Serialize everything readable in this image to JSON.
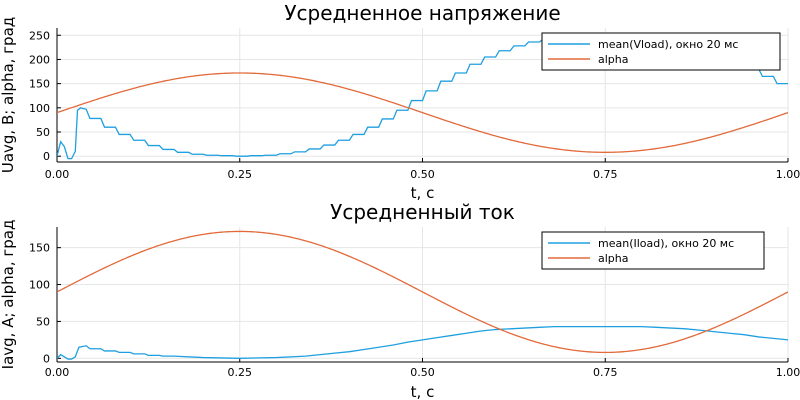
{
  "colors": {
    "series1": "#1f9fe0",
    "series2": "#e26a3b"
  },
  "chart_data": [
    {
      "type": "line",
      "title": "Усредненное напряжение",
      "xlabel": "t, c",
      "ylabel": "Uavg, В; alpha, град",
      "xlim": [
        0,
        1
      ],
      "ylim": [
        -12,
        265
      ],
      "xticks": [
        0,
        0.25,
        0.5,
        0.75,
        1
      ],
      "xtick_labels": [
        "0.00",
        "0.25",
        "0.50",
        "0.75",
        "1.00"
      ],
      "yticks": [
        0,
        50,
        100,
        150,
        200,
        250
      ],
      "ytick_labels": [
        "0",
        "50",
        "100",
        "150",
        "200",
        "250"
      ],
      "grid": true,
      "legend_position": "top-right",
      "series": [
        {
          "name": "mean(Vload), окно 20 мс",
          "x": [
            0,
            0.005,
            0.01,
            0.015,
            0.02,
            0.025,
            0.028,
            0.03,
            0.032,
            0.04,
            0.045,
            0.06,
            0.065,
            0.08,
            0.085,
            0.1,
            0.105,
            0.12,
            0.125,
            0.14,
            0.145,
            0.16,
            0.165,
            0.18,
            0.185,
            0.2,
            0.205,
            0.22,
            0.225,
            0.24,
            0.245,
            0.26,
            0.265,
            0.28,
            0.285,
            0.3,
            0.305,
            0.32,
            0.325,
            0.34,
            0.345,
            0.36,
            0.365,
            0.38,
            0.385,
            0.4,
            0.405,
            0.42,
            0.425,
            0.44,
            0.445,
            0.46,
            0.465,
            0.48,
            0.485,
            0.5,
            0.505,
            0.52,
            0.525,
            0.54,
            0.545,
            0.56,
            0.565,
            0.58,
            0.585,
            0.6,
            0.605,
            0.62,
            0.625,
            0.64,
            0.645,
            0.66,
            0.665,
            0.68,
            0.685,
            0.7,
            0.705,
            0.72,
            0.725,
            0.74,
            0.745,
            0.76,
            0.765,
            0.78,
            0.785,
            0.8,
            0.805,
            0.82,
            0.825,
            0.84,
            0.845,
            0.86,
            0.865,
            0.88,
            0.885,
            0.9,
            0.905,
            0.92,
            0.925,
            0.94,
            0.945,
            0.96,
            0.965,
            0.98,
            0.985,
            1.0
          ],
          "y": [
            0,
            30,
            20,
            -5,
            -5,
            10,
            95,
            97,
            100,
            97,
            78,
            78,
            60,
            60,
            45,
            45,
            33,
            33,
            22,
            22,
            14,
            14,
            8,
            8,
            4,
            4,
            2,
            2,
            1,
            1,
            0,
            0,
            1,
            1,
            2,
            2,
            5,
            5,
            9,
            9,
            15,
            15,
            23,
            23,
            33,
            33,
            45,
            45,
            60,
            60,
            77,
            77,
            95,
            95,
            115,
            115,
            135,
            135,
            155,
            155,
            172,
            172,
            190,
            190,
            205,
            205,
            218,
            218,
            228,
            228,
            236,
            236,
            242,
            242,
            247,
            247,
            250,
            250,
            252,
            252,
            253,
            253,
            253,
            253,
            252,
            252,
            250,
            250,
            246,
            246,
            240,
            240,
            232,
            232,
            222,
            222,
            210,
            210,
            195,
            195,
            180,
            180,
            165,
            165,
            150,
            150
          ]
        },
        {
          "name": "alpha",
          "function": "90+82*sin(2*pi*t)",
          "amplitude": 82,
          "offset": 90
        }
      ]
    },
    {
      "type": "line",
      "title": "Усредненный ток",
      "xlabel": "t, c",
      "ylabel": "Iavg, А; alpha, град",
      "xlim": [
        0,
        1
      ],
      "ylim": [
        -5,
        178
      ],
      "xticks": [
        0,
        0.25,
        0.5,
        0.75,
        1
      ],
      "xtick_labels": [
        "0.00",
        "0.25",
        "0.50",
        "0.75",
        "1.00"
      ],
      "yticks": [
        0,
        50,
        100,
        150
      ],
      "ytick_labels": [
        "0",
        "50",
        "100",
        "150"
      ],
      "grid": true,
      "legend_position": "top-right",
      "series": [
        {
          "name": "mean(Iload), окно 20 мс",
          "x": [
            0,
            0.005,
            0.01,
            0.015,
            0.02,
            0.025,
            0.03,
            0.04,
            0.045,
            0.06,
            0.065,
            0.08,
            0.085,
            0.1,
            0.105,
            0.12,
            0.125,
            0.14,
            0.145,
            0.16,
            0.2,
            0.25,
            0.3,
            0.32,
            0.34,
            0.36,
            0.38,
            0.4,
            0.42,
            0.44,
            0.46,
            0.48,
            0.5,
            0.52,
            0.54,
            0.56,
            0.58,
            0.6,
            0.62,
            0.64,
            0.66,
            0.68,
            0.7,
            0.72,
            0.75,
            0.78,
            0.8,
            0.82,
            0.84,
            0.86,
            0.88,
            0.9,
            0.92,
            0.94,
            0.96,
            0.98,
            1.0
          ],
          "y": [
            0,
            5,
            2,
            -1,
            -1,
            2,
            15,
            17,
            13,
            13,
            10,
            10,
            8,
            8,
            6,
            6,
            4,
            4,
            3,
            3,
            1,
            0,
            1,
            2,
            3,
            5,
            7,
            9,
            12,
            15,
            18,
            22,
            25,
            28,
            31,
            34,
            37,
            39,
            40,
            41,
            42,
            43,
            43,
            43,
            43,
            43,
            43,
            42,
            41,
            40,
            38,
            36,
            34,
            32,
            29,
            27,
            25
          ]
        },
        {
          "name": "alpha",
          "function": "90+82*sin(2*pi*t)",
          "amplitude": 82,
          "offset": 90
        }
      ]
    }
  ]
}
